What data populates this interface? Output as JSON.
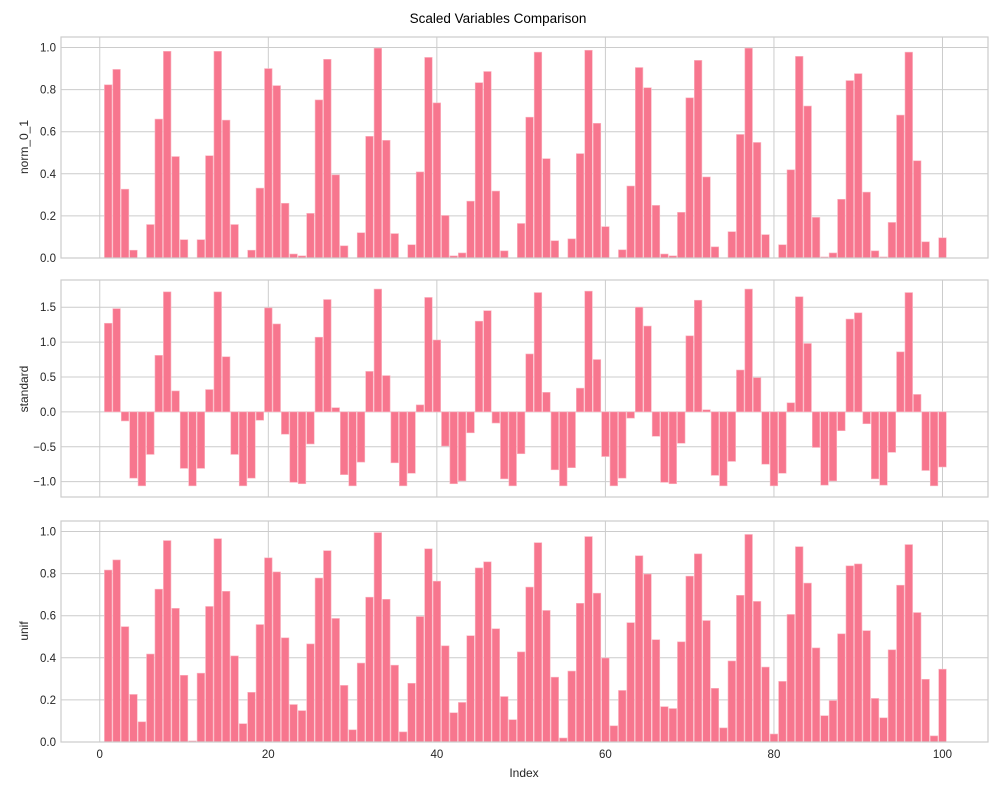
{
  "figure": {
    "title": "Scaled Variables Comparison",
    "bar_color": "#f7768e",
    "bar_edge_color": "#fbb6c2",
    "grid_color": "#cccccc",
    "frame_color": "#cccccc"
  },
  "chart_data": [
    {
      "type": "bar",
      "panel": "top",
      "title": "",
      "xlabel": "",
      "ylabel": "norm_0_1",
      "xlim": [
        -4.6,
        105.4
      ],
      "ylim": [
        0.0,
        1.05
      ],
      "yticks": [
        0.0,
        0.2,
        0.4,
        0.6,
        0.8,
        1.0
      ],
      "ytick_labels": [
        "0.0",
        "0.2",
        "0.4",
        "0.6",
        "0.8",
        "1.0"
      ],
      "xticks": [
        0,
        20,
        40,
        60,
        80,
        100
      ],
      "grid": true,
      "x": [
        1,
        2,
        3,
        4,
        5,
        6,
        7,
        8,
        9,
        10,
        11,
        12,
        13,
        14,
        15,
        16,
        17,
        18,
        19,
        20,
        21,
        22,
        23,
        24,
        25,
        26,
        27,
        28,
        29,
        30,
        31,
        32,
        33,
        34,
        35,
        36,
        37,
        38,
        39,
        40,
        41,
        42,
        43,
        44,
        45,
        46,
        47,
        48,
        49,
        50,
        51,
        52,
        53,
        54,
        55,
        56,
        57,
        58,
        59,
        60,
        61,
        62,
        63,
        64,
        65,
        66,
        67,
        68,
        69,
        70,
        71,
        72,
        73,
        74,
        75,
        76,
        77,
        78,
        79,
        80,
        81,
        82,
        83,
        84,
        85,
        86,
        87,
        88,
        89,
        90,
        91,
        92,
        93,
        94,
        95,
        96,
        97,
        98,
        99,
        100
      ],
      "values": [
        0.823,
        0.896,
        0.327,
        0.037,
        0.0,
        0.159,
        0.66,
        0.982,
        0.482,
        0.087,
        0.0,
        0.087,
        0.486,
        0.982,
        0.655,
        0.159,
        0.0,
        0.037,
        0.332,
        0.9,
        0.819,
        0.26,
        0.019,
        0.01,
        0.212,
        0.751,
        0.944,
        0.395,
        0.058,
        0.0,
        0.12,
        0.578,
        0.997,
        0.559,
        0.116,
        0.0,
        0.063,
        0.409,
        0.953,
        0.737,
        0.202,
        0.01,
        0.024,
        0.27,
        0.833,
        0.886,
        0.318,
        0.034,
        0.0,
        0.164,
        0.669,
        0.978,
        0.472,
        0.082,
        0.0,
        0.091,
        0.496,
        0.987,
        0.64,
        0.149,
        0.0,
        0.039,
        0.342,
        0.905,
        0.809,
        0.25,
        0.019,
        0.01,
        0.217,
        0.761,
        0.939,
        0.385,
        0.053,
        0.0,
        0.125,
        0.587,
        0.997,
        0.549,
        0.111,
        0.0,
        0.063,
        0.419,
        0.958,
        0.722,
        0.193,
        0.005,
        0.024,
        0.279,
        0.843,
        0.876,
        0.313,
        0.034,
        0.005,
        0.169,
        0.679,
        0.978,
        0.462,
        0.077,
        0.0,
        0.096
      ]
    },
    {
      "type": "bar",
      "panel": "middle",
      "title": "",
      "xlabel": "",
      "ylabel": "standard",
      "xlim": [
        -4.6,
        105.4
      ],
      "ylim": [
        -1.22,
        1.89
      ],
      "yticks": [
        -1.0,
        -0.5,
        0.0,
        0.5,
        1.0,
        1.5
      ],
      "ytick_labels": [
        "−1.0",
        "−0.5",
        "0.0",
        "0.5",
        "1.0",
        "1.5"
      ],
      "xticks": [
        0,
        20,
        40,
        60,
        80,
        100
      ],
      "grid": true,
      "x": [
        1,
        2,
        3,
        4,
        5,
        6,
        7,
        8,
        9,
        10,
        11,
        12,
        13,
        14,
        15,
        16,
        17,
        18,
        19,
        20,
        21,
        22,
        23,
        24,
        25,
        26,
        27,
        28,
        29,
        30,
        31,
        32,
        33,
        34,
        35,
        36,
        37,
        38,
        39,
        40,
        41,
        42,
        43,
        44,
        45,
        46,
        47,
        48,
        49,
        50,
        51,
        52,
        53,
        54,
        55,
        56,
        57,
        58,
        59,
        60,
        61,
        62,
        63,
        64,
        65,
        66,
        67,
        68,
        69,
        70,
        71,
        72,
        73,
        74,
        75,
        76,
        77,
        78,
        79,
        80,
        81,
        82,
        83,
        84,
        85,
        86,
        87,
        88,
        89,
        90,
        91,
        92,
        93,
        94,
        95,
        96,
        97,
        98,
        99,
        100
      ],
      "values": [
        1.27,
        1.48,
        -0.13,
        -0.95,
        -1.06,
        -0.61,
        0.81,
        1.72,
        0.3,
        -0.81,
        -1.06,
        -0.81,
        0.32,
        1.72,
        0.79,
        -0.61,
        -1.06,
        -0.95,
        -0.12,
        1.49,
        1.26,
        -0.32,
        -1.01,
        -1.03,
        -0.46,
        1.07,
        1.61,
        0.06,
        -0.9,
        -1.06,
        -0.72,
        0.58,
        1.76,
        0.52,
        -0.73,
        -1.06,
        -0.88,
        0.1,
        1.64,
        1.03,
        -0.49,
        -1.03,
        -0.99,
        -0.3,
        1.3,
        1.45,
        -0.16,
        -0.96,
        -1.06,
        -0.6,
        0.83,
        1.71,
        0.28,
        -0.83,
        -1.06,
        -0.8,
        0.34,
        1.73,
        0.75,
        -0.64,
        -1.06,
        -0.95,
        -0.09,
        1.5,
        1.23,
        -0.35,
        -1.01,
        -1.03,
        -0.45,
        1.09,
        1.6,
        0.03,
        -0.91,
        -1.06,
        -0.71,
        0.6,
        1.76,
        0.49,
        -0.75,
        -1.06,
        -0.88,
        0.13,
        1.65,
        0.98,
        -0.51,
        -1.05,
        -0.99,
        -0.27,
        1.33,
        1.42,
        -0.17,
        -0.96,
        -1.05,
        -0.58,
        0.86,
        1.71,
        0.25,
        -0.84,
        -1.06,
        -0.79
      ]
    },
    {
      "type": "bar",
      "panel": "bottom",
      "title": "",
      "xlabel": "Index",
      "ylabel": "unif",
      "xlim": [
        -4.6,
        105.4
      ],
      "ylim": [
        0.0,
        1.05
      ],
      "yticks": [
        0.0,
        0.2,
        0.4,
        0.6,
        0.8,
        1.0
      ],
      "ytick_labels": [
        "0.0",
        "0.2",
        "0.4",
        "0.6",
        "0.8",
        "1.0"
      ],
      "xticks": [
        0,
        20,
        40,
        60,
        80,
        100
      ],
      "xtick_labels": [
        "0",
        "20",
        "40",
        "60",
        "80",
        "100"
      ],
      "grid": true,
      "x": [
        1,
        2,
        3,
        4,
        5,
        6,
        7,
        8,
        9,
        10,
        11,
        12,
        13,
        14,
        15,
        16,
        17,
        18,
        19,
        20,
        21,
        22,
        23,
        24,
        25,
        26,
        27,
        28,
        29,
        30,
        31,
        32,
        33,
        34,
        35,
        36,
        37,
        38,
        39,
        40,
        41,
        42,
        43,
        44,
        45,
        46,
        47,
        48,
        49,
        50,
        51,
        52,
        53,
        54,
        55,
        56,
        57,
        58,
        59,
        60,
        61,
        62,
        63,
        64,
        65,
        66,
        67,
        68,
        69,
        70,
        71,
        72,
        73,
        74,
        75,
        76,
        77,
        78,
        79,
        80,
        81,
        82,
        83,
        84,
        85,
        86,
        87,
        88,
        89,
        90,
        91,
        92,
        93,
        94,
        95,
        96,
        97,
        98,
        99,
        100
      ],
      "values": [
        0.817,
        0.865,
        0.548,
        0.226,
        0.096,
        0.418,
        0.726,
        0.957,
        0.635,
        0.317,
        0.005,
        0.327,
        0.644,
        0.966,
        0.716,
        0.409,
        0.087,
        0.236,
        0.558,
        0.875,
        0.808,
        0.495,
        0.178,
        0.149,
        0.466,
        0.779,
        0.909,
        0.587,
        0.269,
        0.058,
        0.375,
        0.688,
        0.995,
        0.678,
        0.365,
        0.048,
        0.279,
        0.596,
        0.918,
        0.764,
        0.457,
        0.139,
        0.188,
        0.505,
        0.827,
        0.856,
        0.538,
        0.216,
        0.106,
        0.428,
        0.736,
        0.947,
        0.625,
        0.308,
        0.019,
        0.337,
        0.659,
        0.976,
        0.707,
        0.399,
        0.077,
        0.245,
        0.567,
        0.885,
        0.798,
        0.486,
        0.168,
        0.159,
        0.476,
        0.788,
        0.894,
        0.577,
        0.255,
        0.067,
        0.385,
        0.697,
        0.986,
        0.668,
        0.356,
        0.038,
        0.288,
        0.606,
        0.928,
        0.755,
        0.447,
        0.125,
        0.197,
        0.514,
        0.837,
        0.846,
        0.529,
        0.207,
        0.115,
        0.438,
        0.745,
        0.938,
        0.615,
        0.298,
        0.029,
        0.346
      ]
    }
  ]
}
